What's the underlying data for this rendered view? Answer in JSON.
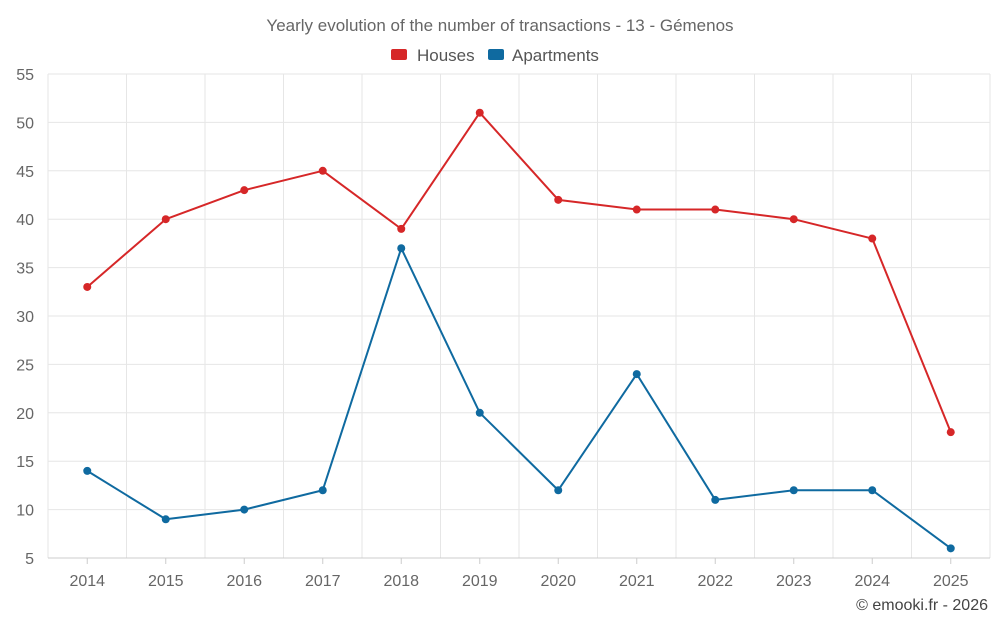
{
  "chart_data": {
    "type": "line",
    "title": "Yearly evolution of the number of transactions - 13 - Gémenos",
    "categories": [
      "2014",
      "2015",
      "2016",
      "2017",
      "2018",
      "2019",
      "2020",
      "2021",
      "2022",
      "2023",
      "2024",
      "2025"
    ],
    "series": [
      {
        "name": "Houses",
        "color": "#d62728",
        "values": [
          33,
          40,
          43,
          45,
          39,
          51,
          42,
          41,
          41,
          40,
          38,
          18
        ]
      },
      {
        "name": "Apartments",
        "color": "#0f6aa0",
        "values": [
          14,
          9,
          10,
          12,
          37,
          20,
          12,
          24,
          11,
          12,
          12,
          6
        ]
      }
    ],
    "ylim": [
      5,
      55
    ],
    "yticks": [
      5,
      10,
      15,
      20,
      25,
      30,
      35,
      40,
      45,
      50,
      55
    ],
    "grid": true,
    "legend_position": "top-center",
    "xlabel": "",
    "ylabel": ""
  },
  "credit": "© emooki.fr - 2026"
}
